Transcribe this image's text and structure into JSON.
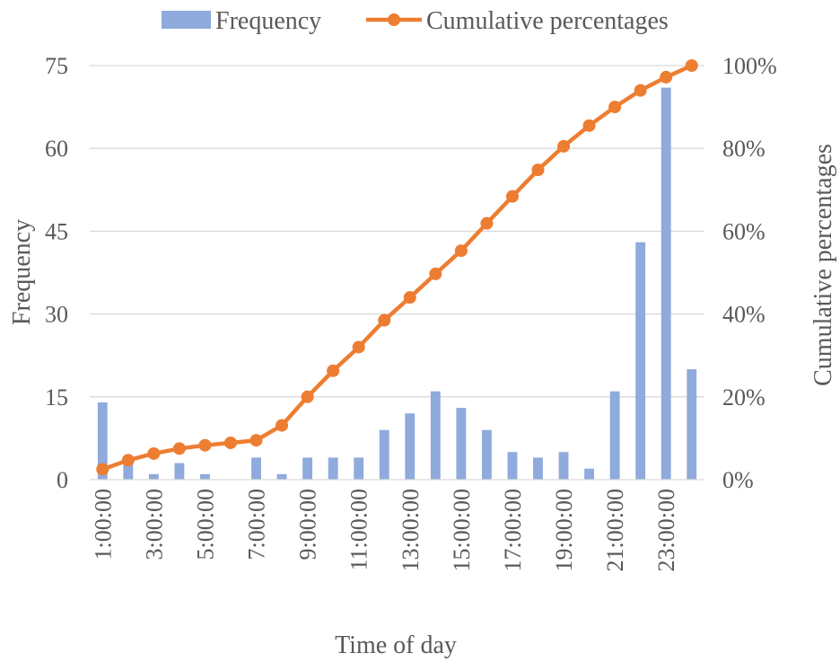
{
  "chart_data": {
    "type": "bar",
    "categories": [
      "1:00:00",
      "2:00:00",
      "3:00:00",
      "4:00:00",
      "5:00:00",
      "6:00:00",
      "7:00:00",
      "8:00:00",
      "9:00:00",
      "10:00:00",
      "11:00:00",
      "12:00:00",
      "13:00:00",
      "14:00:00",
      "15:00:00",
      "16:00:00",
      "17:00:00",
      "18:00:00",
      "19:00:00",
      "20:00:00",
      "21:00:00",
      "22:00:00",
      "23:00:00",
      "24:00:00"
    ],
    "tick_labels": [
      "1:00:00",
      "3:00:00",
      "5:00:00",
      "7:00:00",
      "9:00:00",
      "11:00:00",
      "13:00:00",
      "15:00:00",
      "17:00:00",
      "19:00:00",
      "21:00:00",
      "23:00:00"
    ],
    "series": [
      {
        "name": "Frequency",
        "type": "bar",
        "axis": "left",
        "color": "#8FAADC",
        "values": [
          14,
          4,
          1,
          3,
          1,
          0,
          4,
          1,
          4,
          4,
          4,
          9,
          12,
          16,
          13,
          9,
          5,
          4,
          5,
          2,
          16,
          43,
          71,
          20
        ]
      },
      {
        "name": "Cumulative percentages",
        "type": "line",
        "axis": "right",
        "color": "#ED7D31",
        "values": [
          2.5,
          4.7,
          6.3,
          7.5,
          8.3,
          8.9,
          9.5,
          13.1,
          20.0,
          26.3,
          32.0,
          38.5,
          44.0,
          49.7,
          55.3,
          61.9,
          68.4,
          74.8,
          80.5,
          85.5,
          90.0,
          94.0,
          97.2,
          100.0
        ]
      }
    ],
    "xlabel": "Time of day",
    "ylabel": "Frequency",
    "y2label": "Cumulative percentages",
    "ylim": [
      0,
      75
    ],
    "yticks": [
      0,
      15,
      30,
      45,
      60,
      75
    ],
    "y2lim": [
      0,
      100
    ],
    "y2ticks": [
      0,
      20,
      40,
      60,
      80,
      100
    ],
    "y2_tick_suffix": "%",
    "grid": true,
    "legend_position": "top"
  }
}
